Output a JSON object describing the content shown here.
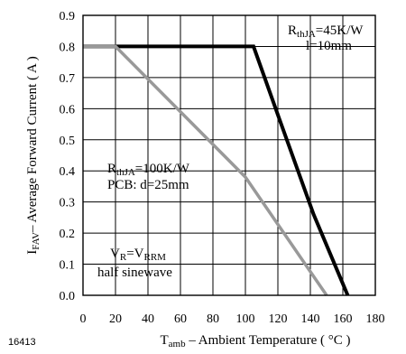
{
  "chart_data": {
    "type": "line",
    "figure_id": "16413",
    "xlabel": {
      "main": "T",
      "sub": "amb",
      "rest": " – Ambient Temperature ( °C )"
    },
    "ylabel": {
      "main": "I",
      "sub": "FAV",
      "rest": "– Average Forward Current ( A )"
    },
    "xlim": [
      0,
      180
    ],
    "ylim": [
      0,
      0.9
    ],
    "x_ticks": [
      "0",
      "20",
      "40",
      "60",
      "80",
      "100",
      "120",
      "140",
      "160",
      "180"
    ],
    "y_ticks": [
      "0.0",
      "0.1",
      "0.2",
      "0.3",
      "0.4",
      "0.5",
      "0.6",
      "0.7",
      "0.8",
      "0.9"
    ],
    "grid": true,
    "series": [
      {
        "color": "#000000",
        "x": [
          0,
          105,
          120,
          142,
          163
        ],
        "y": [
          0.8,
          0.8,
          0.58,
          0.26,
          0.0
        ]
      },
      {
        "color": "#999999",
        "x": [
          0,
          20,
          100,
          150
        ],
        "y": [
          0.8,
          0.8,
          0.38,
          0.0
        ]
      }
    ],
    "annotations": {
      "a1": {
        "l1_main": "R",
        "l1_sub": "thJA",
        "l1_rest": "=45K/W",
        "l2": "l=10mm"
      },
      "a2": {
        "l1_main": "R",
        "l1_sub": "thJA",
        "l1_rest": "=100K/W",
        "l2": "PCB: d=25mm"
      },
      "a3": {
        "l1_a": "V",
        "l1_a_sub": "R",
        "l1_b": "=V",
        "l1_b_sub": "RRM",
        "l2": "half sinewave"
      }
    }
  }
}
